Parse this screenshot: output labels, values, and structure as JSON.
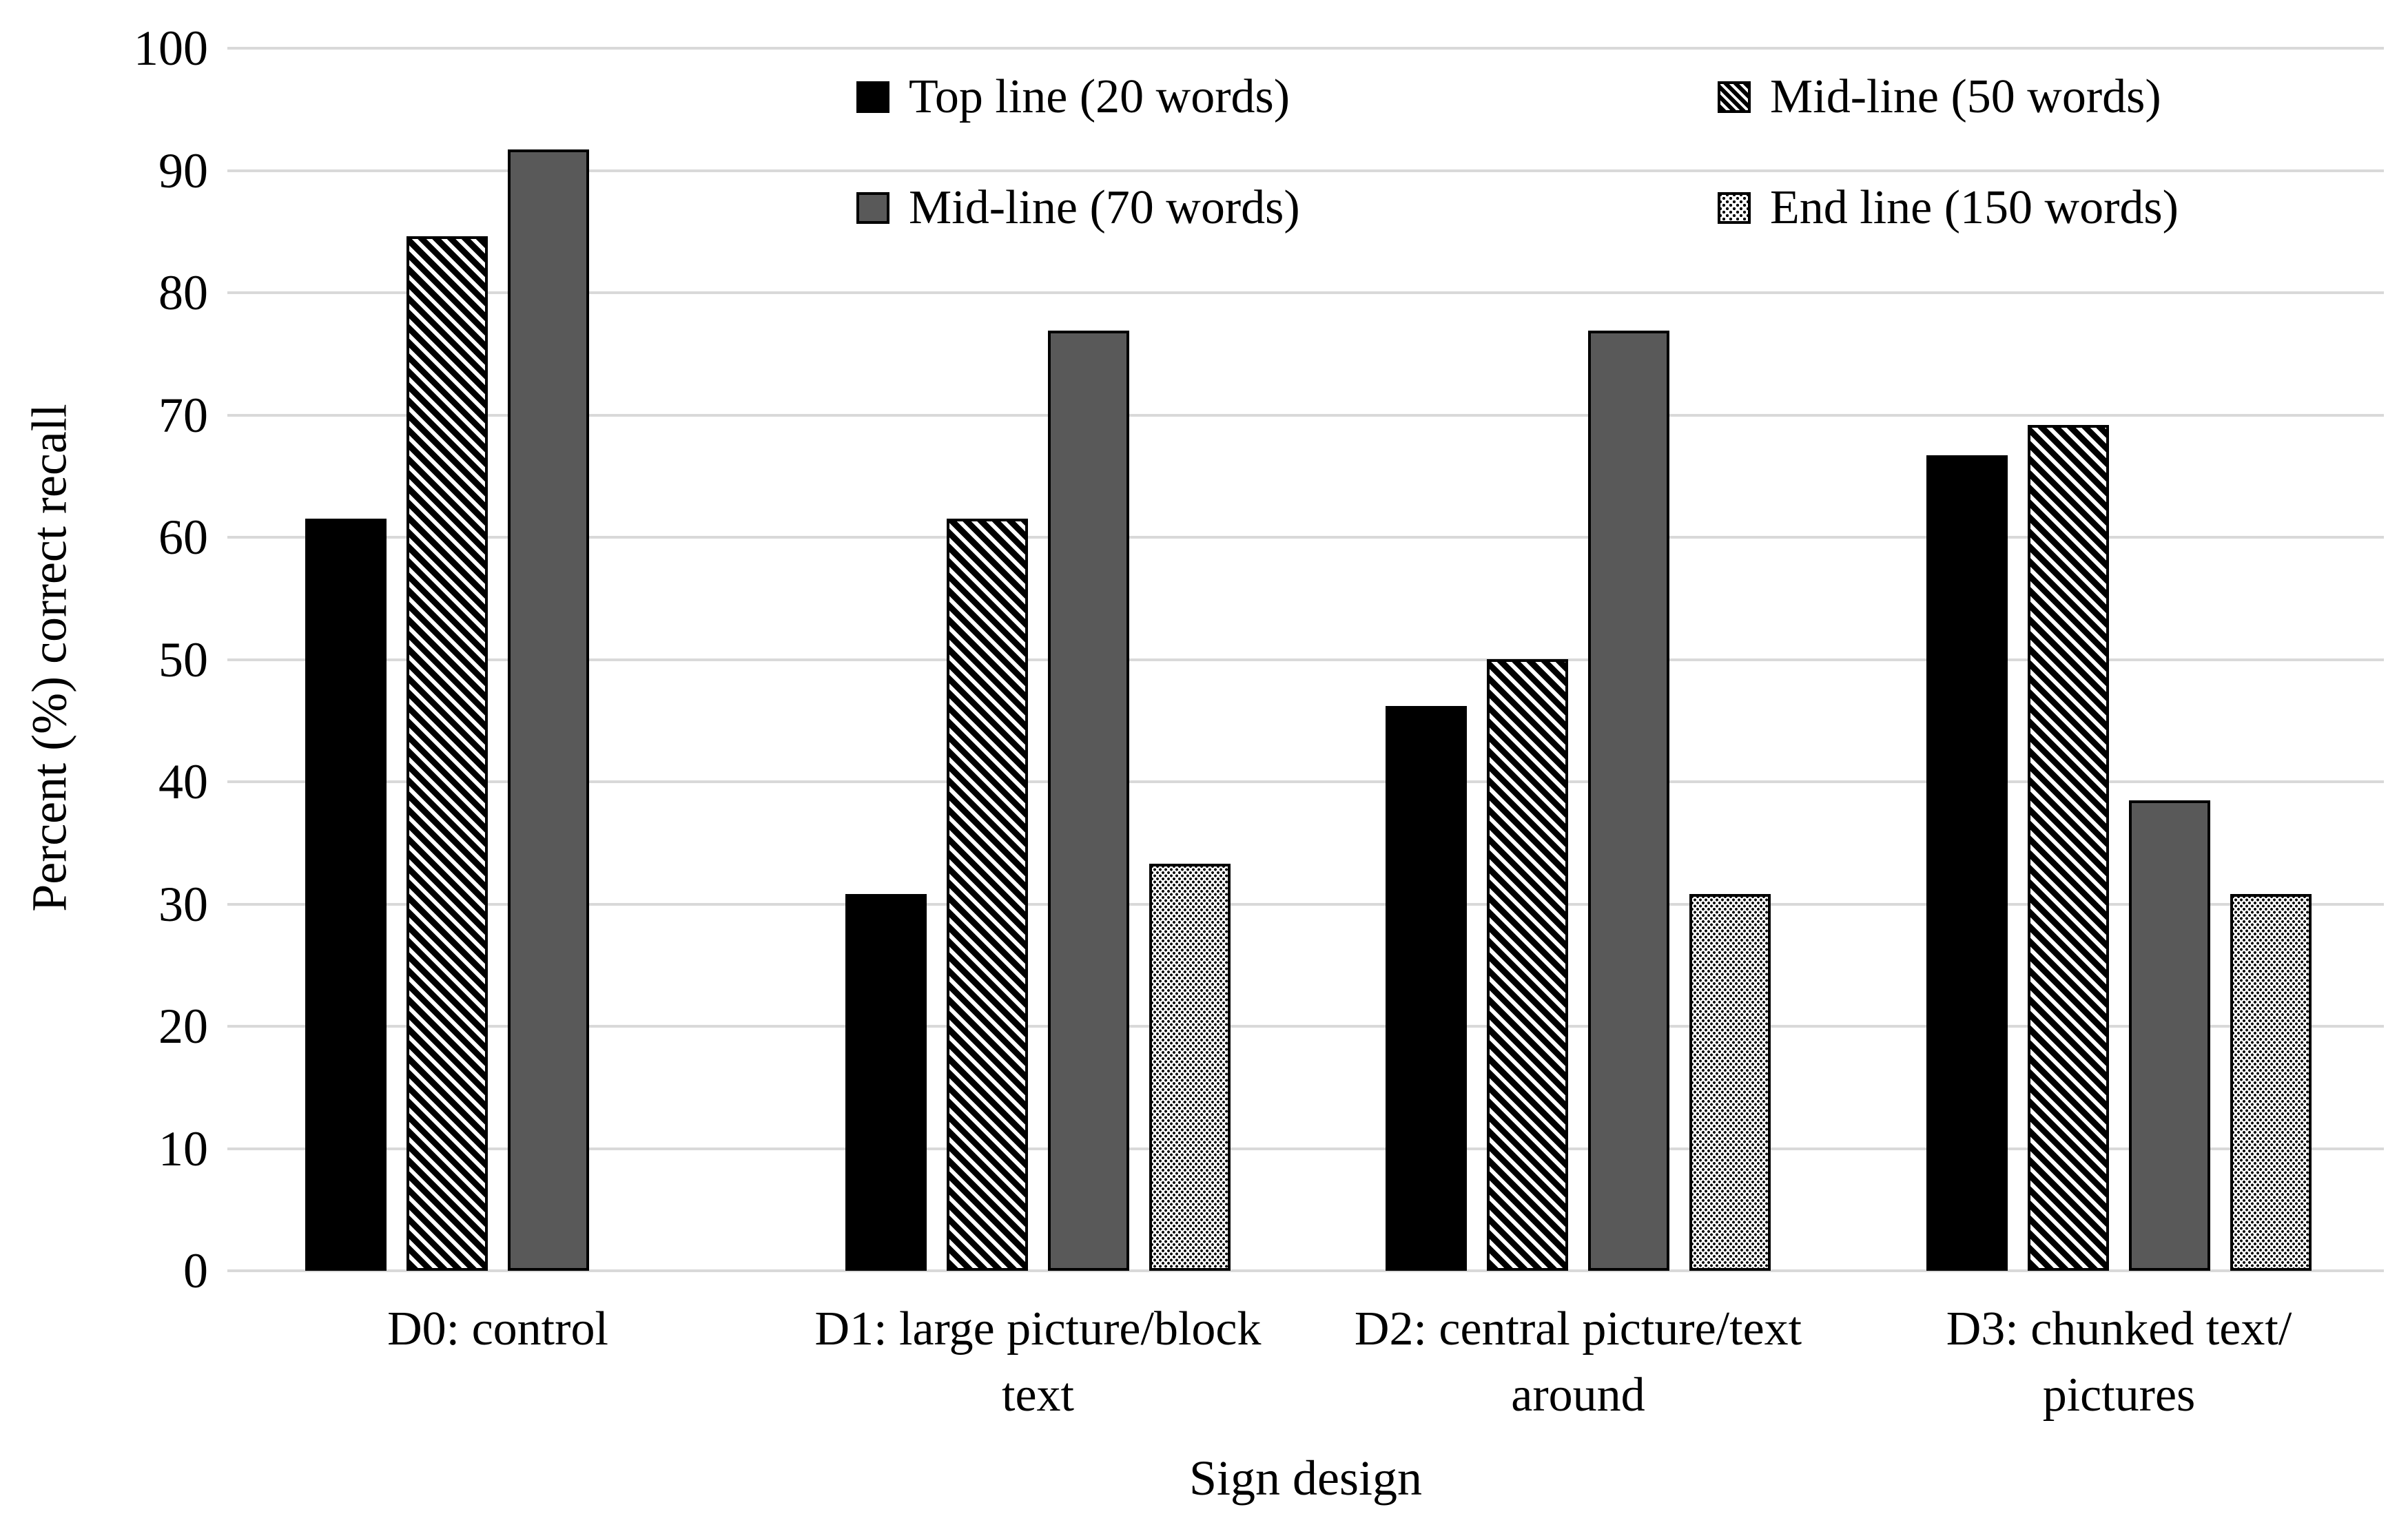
{
  "chart_data": {
    "type": "bar",
    "title": "",
    "ylabel": "Percent (%) correct recall",
    "xlabel": "Sign design",
    "ylim": [
      0,
      100
    ],
    "y_ticks": [
      0,
      10,
      20,
      30,
      40,
      50,
      60,
      70,
      80,
      90,
      100
    ],
    "grid": true,
    "legend_position": "top-inside-two-columns",
    "categories": [
      "D0: control",
      "D1: large picture/block text",
      "D2: central picture/text around",
      "D3: chunked text/ pictures"
    ],
    "category_display_lines": [
      [
        "D0: control"
      ],
      [
        "D1: large picture/block",
        "text"
      ],
      [
        "D2: central picture/text",
        "around"
      ],
      [
        "D3: chunked text/",
        "pictures"
      ]
    ],
    "series": [
      {
        "name": "Top line (20 words)",
        "pattern": "solid-black",
        "values": [
          61.5,
          30.8,
          46.2,
          66.7
        ]
      },
      {
        "name": "Mid-line (50 words)",
        "pattern": "diagonal-hatch",
        "values": [
          84.6,
          61.5,
          50.0,
          69.2
        ]
      },
      {
        "name": "Mid-line (70 words)",
        "pattern": "solid-gray",
        "values": [
          91.7,
          76.9,
          76.9,
          38.5
        ]
      },
      {
        "name": "End line (150 words)",
        "pattern": "dotted",
        "values": [
          null,
          33.3,
          30.8,
          30.8
        ]
      }
    ]
  },
  "legend": {
    "items": [
      {
        "label": "Top line (20 words)",
        "pattern": "solid-black"
      },
      {
        "label": "Mid-line (50 words)",
        "pattern": "diagonal-hatch"
      },
      {
        "label": "Mid-line (70 words)",
        "pattern": "solid-gray"
      },
      {
        "label": "End line (150 words)",
        "pattern": "dotted"
      }
    ]
  },
  "colors": {
    "black": "#000000",
    "gray_bar": "#595959",
    "gridline": "#d9d9d9",
    "background": "#ffffff",
    "text": "#000000"
  }
}
